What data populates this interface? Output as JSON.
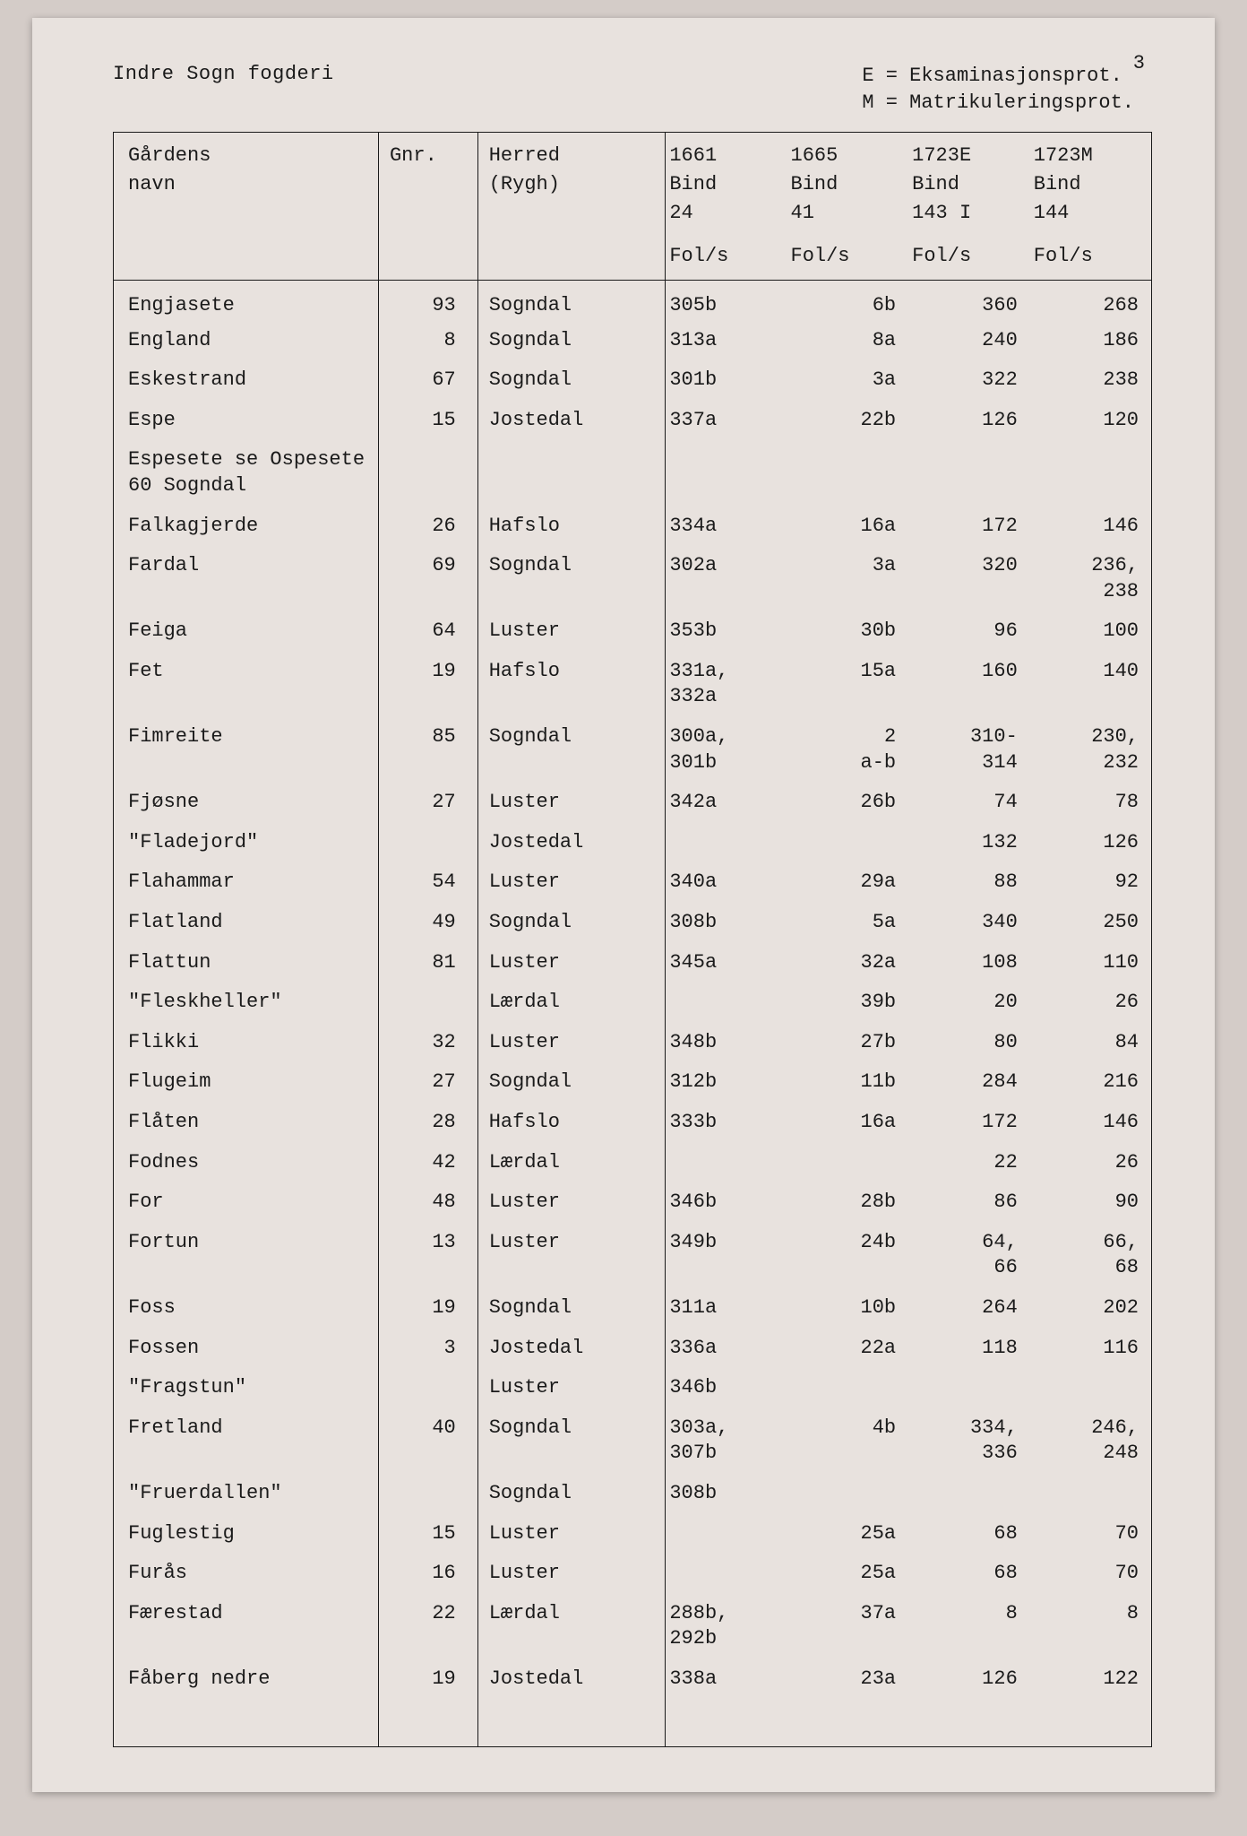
{
  "page_number": "3",
  "title": "Indre Sogn fogderi",
  "legend": {
    "line1": "E = Eksaminasjonsprot.",
    "line2": "M = Matrikuleringsprot."
  },
  "colors": {
    "page_bg": "#e8e2de",
    "body_bg": "#d4ccc8",
    "text": "#1a1a1a",
    "rule": "#1a1a1a"
  },
  "typography": {
    "font_family": "Courier New",
    "font_size_pt": 16
  },
  "table": {
    "headers": {
      "navn": "Gårdens\nnavn",
      "gnr": "Gnr.",
      "herred": "Herred\n(Rygh)",
      "c1": "1661\nBind\n24",
      "c2": "1665\nBind\n41",
      "c3": "1723E\nBind\n143 I",
      "c4": "1723M\nBind\n144"
    },
    "subhead": {
      "c1": "Fol/s",
      "c2": "Fol/s",
      "c3": "Fol/s",
      "c4": "Fol/s"
    },
    "rows": [
      {
        "navn": "Engjasete",
        "gnr": "93",
        "herred": "Sogndal",
        "c1": "305b",
        "c2": "6b",
        "c3": "360",
        "c4": "268"
      },
      {
        "navn": "England",
        "gnr": "8",
        "herred": "Sogndal",
        "c1": "313a",
        "c2": "8a",
        "c3": "240",
        "c4": "186"
      },
      {
        "navn": "Eskestrand",
        "gnr": "67",
        "herred": "Sogndal",
        "c1": "301b",
        "c2": "3a",
        "c3": "322",
        "c4": "238"
      },
      {
        "navn": "Espe",
        "gnr": "15",
        "herred": "Jostedal",
        "c1": "337a",
        "c2": "22b",
        "c3": "126",
        "c4": "120"
      },
      {
        "navn": "Espesete se Ospesete\n60 Sogndal",
        "gnr": "",
        "herred": "",
        "c1": "",
        "c2": "",
        "c3": "",
        "c4": ""
      },
      {
        "navn": "Falkagjerde",
        "gnr": "26",
        "herred": "Hafslo",
        "c1": "334a",
        "c2": "16a",
        "c3": "172",
        "c4": "146"
      },
      {
        "navn": "Fardal",
        "gnr": "69",
        "herred": "Sogndal",
        "c1": "302a",
        "c2": "3a",
        "c3": "320",
        "c4": "236,\n238"
      },
      {
        "navn": "Feiga",
        "gnr": "64",
        "herred": "Luster",
        "c1": "353b",
        "c2": "30b",
        "c3": "96",
        "c4": "100"
      },
      {
        "navn": "Fet",
        "gnr": "19",
        "herred": "Hafslo",
        "c1": "331a,\n332a",
        "c2": "15a",
        "c3": "160",
        "c4": "140"
      },
      {
        "navn": "Fimreite",
        "gnr": "85",
        "herred": "Sogndal",
        "c1": "300a,\n301b",
        "c2": "2\na-b",
        "c3": "310-\n314",
        "c4": "230,\n232"
      },
      {
        "navn": "Fjøsne",
        "gnr": "27",
        "herred": "Luster",
        "c1": "342a",
        "c2": "26b",
        "c3": "74",
        "c4": "78"
      },
      {
        "navn": "\"Fladejord\"",
        "gnr": "",
        "herred": "Jostedal",
        "c1": "",
        "c2": "",
        "c3": "132",
        "c4": "126"
      },
      {
        "navn": "Flahammar",
        "gnr": "54",
        "herred": "Luster",
        "c1": "340a",
        "c2": "29a",
        "c3": "88",
        "c4": "92"
      },
      {
        "navn": "Flatland",
        "gnr": "49",
        "herred": "Sogndal",
        "c1": "308b",
        "c2": "5a",
        "c3": "340",
        "c4": "250"
      },
      {
        "navn": "Flattun",
        "gnr": "81",
        "herred": "Luster",
        "c1": "345a",
        "c2": "32a",
        "c3": "108",
        "c4": "110"
      },
      {
        "navn": "\"Fleskheller\"",
        "gnr": "",
        "herred": "Lærdal",
        "c1": "",
        "c2": "39b",
        "c3": "20",
        "c4": "26"
      },
      {
        "navn": "Flikki",
        "gnr": "32",
        "herred": "Luster",
        "c1": "348b",
        "c2": "27b",
        "c3": "80",
        "c4": "84"
      },
      {
        "navn": "Flugeim",
        "gnr": "27",
        "herred": "Sogndal",
        "c1": "312b",
        "c2": "11b",
        "c3": "284",
        "c4": "216"
      },
      {
        "navn": "Flåten",
        "gnr": "28",
        "herred": "Hafslo",
        "c1": "333b",
        "c2": "16a",
        "c3": "172",
        "c4": "146"
      },
      {
        "navn": "Fodnes",
        "gnr": "42",
        "herred": "Lærdal",
        "c1": "",
        "c2": "",
        "c3": "22",
        "c4": "26"
      },
      {
        "navn": "For",
        "gnr": "48",
        "herred": "Luster",
        "c1": "346b",
        "c2": "28b",
        "c3": "86",
        "c4": "90"
      },
      {
        "navn": "Fortun",
        "gnr": "13",
        "herred": "Luster",
        "c1": "349b",
        "c2": "24b",
        "c3": "64,\n66",
        "c4": "66,\n68"
      },
      {
        "navn": "Foss",
        "gnr": "19",
        "herred": "Sogndal",
        "c1": "311a",
        "c2": "10b",
        "c3": "264",
        "c4": "202"
      },
      {
        "navn": "Fossen",
        "gnr": "3",
        "herred": "Jostedal",
        "c1": "336a",
        "c2": "22a",
        "c3": "118",
        "c4": "116"
      },
      {
        "navn": "\"Fragstun\"",
        "gnr": "",
        "herred": "Luster",
        "c1": "346b",
        "c2": "",
        "c3": "",
        "c4": ""
      },
      {
        "navn": "Fretland",
        "gnr": "40",
        "herred": "Sogndal",
        "c1": "303a,\n307b",
        "c2": "4b",
        "c3": "334,\n336",
        "c4": "246,\n248"
      },
      {
        "navn": "\"Fruerdallen\"",
        "gnr": "",
        "herred": "Sogndal",
        "c1": "308b",
        "c2": "",
        "c3": "",
        "c4": ""
      },
      {
        "navn": "Fuglestig",
        "gnr": "15",
        "herred": "Luster",
        "c1": "",
        "c2": "25a",
        "c3": "68",
        "c4": "70"
      },
      {
        "navn": "Furås",
        "gnr": "16",
        "herred": "Luster",
        "c1": "",
        "c2": "25a",
        "c3": "68",
        "c4": "70"
      },
      {
        "navn": "Færestad",
        "gnr": "22",
        "herred": "Lærdal",
        "c1": "288b,\n292b",
        "c2": "37a",
        "c3": "8",
        "c4": "8"
      },
      {
        "navn": "Fåberg nedre",
        "gnr": "19",
        "herred": "Jostedal",
        "c1": "338a",
        "c2": "23a",
        "c3": "126",
        "c4": "122"
      }
    ]
  }
}
